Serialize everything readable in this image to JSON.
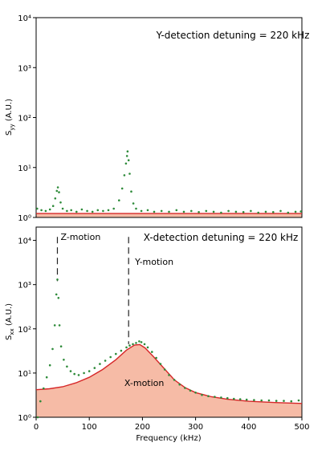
{
  "chart_data": [
    {
      "type": "scatter",
      "panel": "top",
      "annotation": "Y-detection detuning = 220 kHz",
      "ylabel": "S_yy (A.U.)",
      "ylabel_main": "S",
      "ylabel_sub": "yy",
      "ylabel_tail": " (A.U.)",
      "yscale": "log",
      "xlim": [
        0,
        500
      ],
      "ylim": [
        1,
        10000
      ],
      "ytick_values": [
        1,
        10,
        100,
        1000,
        10000
      ],
      "ytick_labels": [
        "10⁰",
        "10¹",
        "10²",
        "10³",
        "10⁴"
      ],
      "fit_level": 1.2,
      "series": [
        {
          "points": [
            [
              2,
              1.5
            ],
            [
              10,
              1.4
            ],
            [
              18,
              1.35
            ],
            [
              26,
              1.45
            ],
            [
              32,
              1.7
            ],
            [
              36,
              2.4
            ],
            [
              39,
              3.4
            ],
            [
              41,
              4.0
            ],
            [
              43,
              3.2
            ],
            [
              46,
              2.0
            ],
            [
              50,
              1.5
            ],
            [
              58,
              1.35
            ],
            [
              66,
              1.4
            ],
            [
              76,
              1.3
            ],
            [
              86,
              1.45
            ],
            [
              96,
              1.35
            ],
            [
              106,
              1.3
            ],
            [
              116,
              1.4
            ],
            [
              126,
              1.35
            ],
            [
              136,
              1.4
            ],
            [
              146,
              1.5
            ],
            [
              156,
              2.2
            ],
            [
              162,
              3.8
            ],
            [
              166,
              7.0
            ],
            [
              169,
              12.0
            ],
            [
              171,
              17.0
            ],
            [
              172,
              21.0
            ],
            [
              174,
              14.0
            ],
            [
              176,
              7.5
            ],
            [
              179,
              3.3
            ],
            [
              183,
              1.9
            ],
            [
              188,
              1.5
            ],
            [
              198,
              1.35
            ],
            [
              210,
              1.4
            ],
            [
              222,
              1.3
            ],
            [
              236,
              1.35
            ],
            [
              250,
              1.3
            ],
            [
              264,
              1.4
            ],
            [
              278,
              1.3
            ],
            [
              292,
              1.35
            ],
            [
              306,
              1.28
            ],
            [
              320,
              1.35
            ],
            [
              334,
              1.3
            ],
            [
              348,
              1.25
            ],
            [
              362,
              1.35
            ],
            [
              376,
              1.3
            ],
            [
              390,
              1.28
            ],
            [
              404,
              1.35
            ],
            [
              418,
              1.25
            ],
            [
              432,
              1.3
            ],
            [
              446,
              1.28
            ],
            [
              460,
              1.35
            ],
            [
              474,
              1.25
            ],
            [
              488,
              1.3
            ],
            [
              498,
              1.32
            ]
          ]
        }
      ]
    },
    {
      "type": "scatter",
      "panel": "bottom",
      "annotation": "X-detection detuning = 220 kHz",
      "ylabel": "S_xx (A.U.)",
      "ylabel_main": "S",
      "ylabel_sub": "xx",
      "ylabel_tail": " (A.U.)",
      "xlabel": "Frequency (kHz)",
      "yscale": "log",
      "xlim": [
        0,
        500
      ],
      "ylim": [
        1,
        20000
      ],
      "xtick_values": [
        0,
        100,
        200,
        300,
        400,
        500
      ],
      "xtick_labels": [
        "0",
        "100",
        "200",
        "300",
        "400",
        "500"
      ],
      "ytick_values": [
        1,
        10,
        100,
        1000,
        10000
      ],
      "ytick_labels": [
        "10⁰",
        "10¹",
        "10²",
        "10³",
        "10⁴"
      ],
      "labels": [
        {
          "text": "Z-motion",
          "x": 40,
          "y": 12000
        },
        {
          "text": "Y-motion",
          "x": 180,
          "y": 3300
        },
        {
          "text": "X-motion",
          "x": 160,
          "y": 6
        }
      ],
      "marker_lines": [
        {
          "x": 40,
          "y_from": 1200,
          "y_to": 12000
        },
        {
          "x": 174,
          "y_from": 45,
          "y_to": 12000
        }
      ],
      "fit": {
        "points": [
          [
            0,
            4.2
          ],
          [
            25,
            4.4
          ],
          [
            50,
            4.9
          ],
          [
            75,
            6.0
          ],
          [
            100,
            8.0
          ],
          [
            125,
            12.0
          ],
          [
            150,
            20.0
          ],
          [
            170,
            33.0
          ],
          [
            185,
            43.0
          ],
          [
            195,
            44.0
          ],
          [
            205,
            37.0
          ],
          [
            220,
            24.0
          ],
          [
            240,
            13.0
          ],
          [
            260,
            7.0
          ],
          [
            280,
            4.7
          ],
          [
            300,
            3.6
          ],
          [
            330,
            2.9
          ],
          [
            360,
            2.55
          ],
          [
            400,
            2.3
          ],
          [
            450,
            2.15
          ],
          [
            500,
            2.05
          ]
        ]
      },
      "series": [
        {
          "points": [
            [
              3,
              1.0
            ],
            [
              8,
              2.3
            ],
            [
              14,
              4.5
            ],
            [
              20,
              8.0
            ],
            [
              26,
              15.0
            ],
            [
              31,
              35.0
            ],
            [
              35,
              120.0
            ],
            [
              38,
              600.0
            ],
            [
              40,
              1300.0
            ],
            [
              42,
              500.0
            ],
            [
              44,
              120.0
            ],
            [
              47,
              40.0
            ],
            [
              52,
              20.0
            ],
            [
              58,
              14.0
            ],
            [
              65,
              11.0
            ],
            [
              72,
              9.5
            ],
            [
              80,
              9.0
            ],
            [
              90,
              10.0
            ],
            [
              100,
              11.0
            ],
            [
              110,
              13.0
            ],
            [
              120,
              16.0
            ],
            [
              130,
              19.0
            ],
            [
              140,
              23.0
            ],
            [
              150,
              27.0
            ],
            [
              160,
              32.0
            ],
            [
              170,
              38.0
            ],
            [
              176,
              42.0
            ],
            [
              182,
              45.0
            ],
            [
              188,
              48.0
            ],
            [
              194,
              52.0
            ],
            [
              198,
              50.0
            ],
            [
              204,
              45.0
            ],
            [
              210,
              38.0
            ],
            [
              218,
              30.0
            ],
            [
              226,
              22.0
            ],
            [
              234,
              16.0
            ],
            [
              242,
              12.0
            ],
            [
              250,
              9.0
            ],
            [
              260,
              7.0
            ],
            [
              270,
              5.5
            ],
            [
              280,
              4.6
            ],
            [
              290,
              4.0
            ],
            [
              300,
              3.6
            ],
            [
              312,
              3.2
            ],
            [
              324,
              3.0
            ],
            [
              336,
              2.9
            ],
            [
              348,
              2.8
            ],
            [
              360,
              2.7
            ],
            [
              372,
              2.6
            ],
            [
              384,
              2.55
            ],
            [
              396,
              2.5
            ],
            [
              410,
              2.45
            ],
            [
              424,
              2.4
            ],
            [
              438,
              2.4
            ],
            [
              452,
              2.35
            ],
            [
              466,
              2.35
            ],
            [
              480,
              2.3
            ],
            [
              494,
              2.4
            ]
          ]
        }
      ]
    }
  ]
}
